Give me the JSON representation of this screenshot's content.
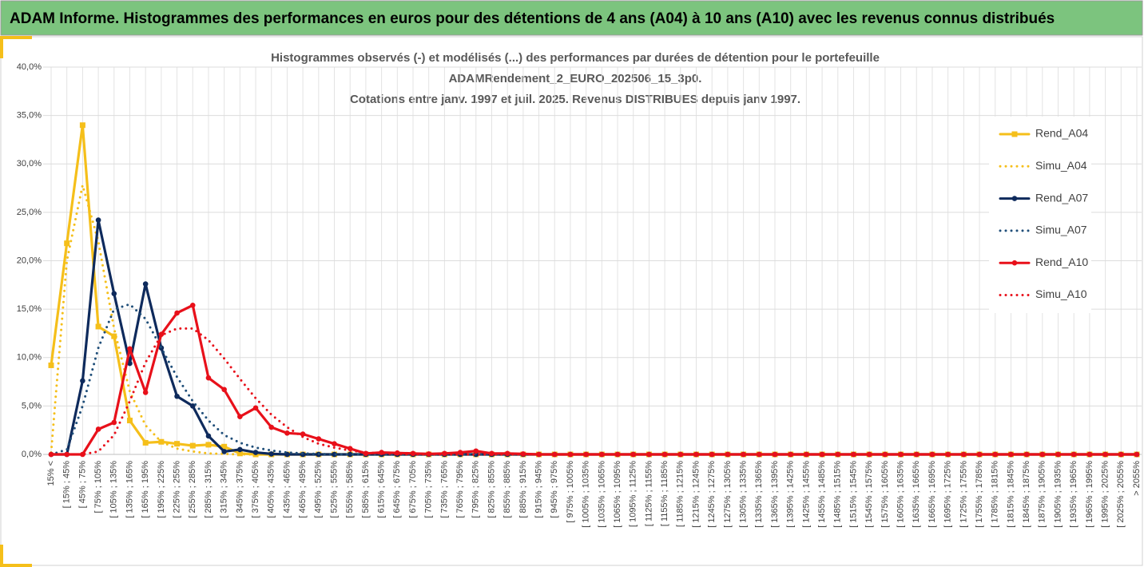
{
  "header": {
    "title": "ADAM Informe. Histogrammes des performances en euros pour des détentions de 4 ans (A04) à 10 ans (A10) avec les revenus connus distribués"
  },
  "chart_data": {
    "type": "line",
    "title": [
      "Histogrammes observés (-) et modélisés (...) des performances par durées de détention pour le portefeuille",
      "ADAMRendement_2_EURO_202506_15_3p0.",
      "Cotations entre janv. 1997 et juil. 2025. Revenus DISTRIBUES depuis janv 1997."
    ],
    "categories": [
      "15% <",
      "[ 15% ; 45%",
      "[ 45% ; 75%",
      "[ 75% ; 105%",
      "[ 105% ; 135%",
      "[ 135% ; 165%",
      "[ 165% ; 195%",
      "[ 195% ; 225%",
      "[ 225% ; 255%",
      "[ 255% ; 285%",
      "[ 285% ; 315%",
      "[ 315% ; 345%",
      "[ 345% ; 375%",
      "[ 375% ; 405%",
      "[ 405% ; 435%",
      "[ 435% ; 465%",
      "[ 465% ; 495%",
      "[ 495% ; 525%",
      "[ 525% ; 555%",
      "[ 555% ; 585%",
      "[ 585% ; 615%",
      "[ 615% ; 645%",
      "[ 645% ; 675%",
      "[ 675% ; 705%",
      "[ 705% ; 735%",
      "[ 735% ; 765%",
      "[ 765% ; 795%",
      "[ 795% ; 825%",
      "[ 825% ; 855%",
      "[ 855% ; 885%",
      "[ 885% ; 915%",
      "[ 915% ; 945%",
      "[ 945% ; 975%",
      "[ 975% ; 1005%",
      "[ 1005% ; 1035%",
      "[ 1035% ; 1065%",
      "[ 1065% ; 1095%",
      "[ 1095% ; 1125%",
      "[ 1125% ; 1155%",
      "[ 1155% ; 1185%",
      "[ 1185% ; 1215%",
      "[ 1215% ; 1245%",
      "[ 1245% ; 1275%",
      "[ 1275% ; 1305%",
      "[ 1305% ; 1335%",
      "[ 1335% ; 1365%",
      "[ 1365% ; 1395%",
      "[ 1395% ; 1425%",
      "[ 1425% ; 1455%",
      "[ 1455% ; 1485%",
      "[ 1485% ; 1515%",
      "[ 1515% ; 1545%",
      "[ 1545% ; 1575%",
      "[ 1575% ; 1605%",
      "[ 1605% ; 1635%",
      "[ 1635% ; 1665%",
      "[ 1665% ; 1695%",
      "[ 1695% ; 1725%",
      "[ 1725% ; 1755%",
      "[ 1755% ; 1785%",
      "[ 1785% ; 1815%",
      "[ 1815% ; 1845%",
      "[ 1845% ; 1875%",
      "[ 1875% ; 1905%",
      "[ 1905% ; 1935%",
      "[ 1935% ; 1965%",
      "[ 1965% ; 1995%",
      "[ 1995% ; 2025%",
      "[ 2025% ; 2055%",
      "> 2055%"
    ],
    "series": [
      {
        "name": "Rend_A04",
        "color": "#f5bf1a",
        "style": "solid",
        "marker": "square",
        "values": [
          9.2,
          21.8,
          34.0,
          13.2,
          12.2,
          3.5,
          1.2,
          1.3,
          1.1,
          0.9,
          1.0,
          0.8,
          0.1,
          0,
          0,
          0,
          0,
          0,
          0,
          0,
          0,
          0,
          0,
          0,
          0,
          0,
          0,
          0,
          0,
          0,
          0,
          0,
          0,
          0,
          0,
          0,
          0,
          0,
          0,
          0,
          0,
          0,
          0,
          0,
          0,
          0,
          0,
          0,
          0,
          0,
          0,
          0,
          0,
          0,
          0,
          0,
          0,
          0,
          0,
          0,
          0,
          0,
          0,
          0,
          0,
          0,
          0,
          0,
          0,
          0
        ]
      },
      {
        "name": "Simu_A04",
        "color": "#f5bf1a",
        "style": "dotted",
        "values": [
          0.2,
          20,
          27.8,
          22,
          13,
          6.5,
          3,
          1.3,
          0.6,
          0.3,
          0.1,
          0.05,
          0,
          0,
          0,
          0,
          0,
          0,
          0,
          0,
          0,
          0,
          0,
          0,
          0,
          0,
          0,
          0,
          0,
          0,
          0,
          0,
          0,
          0,
          0,
          0,
          0,
          0,
          0,
          0,
          0,
          0,
          0,
          0,
          0,
          0,
          0,
          0,
          0,
          0,
          0,
          0,
          0,
          0,
          0,
          0,
          0,
          0,
          0,
          0,
          0,
          0,
          0,
          0,
          0,
          0,
          0,
          0,
          0,
          0
        ]
      },
      {
        "name": "Rend_A07",
        "color": "#0e2a5c",
        "style": "solid",
        "marker": "circle",
        "values": [
          0,
          0,
          7.6,
          24.2,
          16.6,
          9.4,
          17.6,
          11,
          6,
          5,
          1.9,
          0.3,
          0.5,
          0.2,
          0.05,
          0,
          0,
          0,
          0,
          0,
          0,
          0,
          0,
          0,
          0,
          0,
          0,
          0,
          0,
          0,
          0,
          0,
          0,
          0,
          0,
          0,
          0,
          0,
          0,
          0,
          0,
          0,
          0,
          0,
          0,
          0,
          0,
          0,
          0,
          0,
          0,
          0,
          0,
          0,
          0,
          0,
          0,
          0,
          0,
          0,
          0,
          0,
          0,
          0,
          0,
          0,
          0,
          0,
          0,
          0
        ]
      },
      {
        "name": "Simu_A07",
        "color": "#1f4e79",
        "style": "dotted",
        "values": [
          0,
          0.5,
          5,
          11,
          15,
          15.5,
          14,
          11,
          8,
          5.5,
          3.5,
          2,
          1.2,
          0.7,
          0.4,
          0.2,
          0.1,
          0.05,
          0,
          0,
          0,
          0,
          0,
          0,
          0,
          0,
          0,
          0,
          0,
          0,
          0,
          0,
          0,
          0,
          0,
          0,
          0,
          0,
          0,
          0,
          0,
          0,
          0,
          0,
          0,
          0,
          0,
          0,
          0,
          0,
          0,
          0,
          0,
          0,
          0,
          0,
          0,
          0,
          0,
          0,
          0,
          0,
          0,
          0,
          0,
          0,
          0,
          0,
          0,
          0
        ]
      },
      {
        "name": "Rend_A10",
        "color": "#e8101a",
        "style": "solid",
        "marker": "circle",
        "values": [
          0,
          0,
          0,
          2.6,
          3.3,
          10.9,
          6.4,
          12.4,
          14.6,
          15.4,
          7.9,
          6.7,
          3.9,
          4.8,
          2.8,
          2.2,
          2.1,
          1.6,
          1.1,
          0.6,
          0.1,
          0.2,
          0.15,
          0.1,
          0.05,
          0.1,
          0.2,
          0.35,
          0.1,
          0.1,
          0.05,
          0,
          0,
          0,
          0,
          0,
          0,
          0,
          0,
          0,
          0,
          0,
          0,
          0,
          0,
          0,
          0,
          0,
          0,
          0,
          0,
          0,
          0,
          0,
          0,
          0,
          0,
          0,
          0,
          0,
          0,
          0,
          0,
          0,
          0,
          0,
          0,
          0,
          0,
          0
        ]
      },
      {
        "name": "Simu_A10",
        "color": "#e8101a",
        "style": "dotted",
        "values": [
          0,
          0,
          0,
          0.3,
          2,
          5.5,
          9.5,
          12.3,
          13,
          13,
          11.8,
          9.9,
          7.8,
          5.8,
          4.1,
          2.8,
          1.8,
          1.1,
          0.7,
          0.4,
          0.2,
          0.1,
          0.05,
          0,
          0,
          0,
          0,
          0,
          0,
          0,
          0,
          0,
          0,
          0,
          0,
          0,
          0,
          0,
          0,
          0,
          0,
          0,
          0,
          0,
          0,
          0,
          0,
          0,
          0,
          0,
          0,
          0,
          0,
          0,
          0,
          0,
          0,
          0,
          0,
          0,
          0,
          0,
          0,
          0,
          0,
          0,
          0,
          0,
          0,
          0
        ]
      }
    ],
    "ylim": [
      0,
      40
    ],
    "yticks": [
      {
        "value": 0,
        "label": "0,0%"
      },
      {
        "value": 5,
        "label": "5,0%"
      },
      {
        "value": 10,
        "label": "10,0%"
      },
      {
        "value": 15,
        "label": "15,0%"
      },
      {
        "value": 20,
        "label": "20,0%"
      },
      {
        "value": 25,
        "label": "25,0%"
      },
      {
        "value": 30,
        "label": "30,0%"
      },
      {
        "value": 35,
        "label": "35,0%"
      },
      {
        "value": 40,
        "label": "40,0%"
      }
    ],
    "grid": true,
    "legend": "right"
  }
}
